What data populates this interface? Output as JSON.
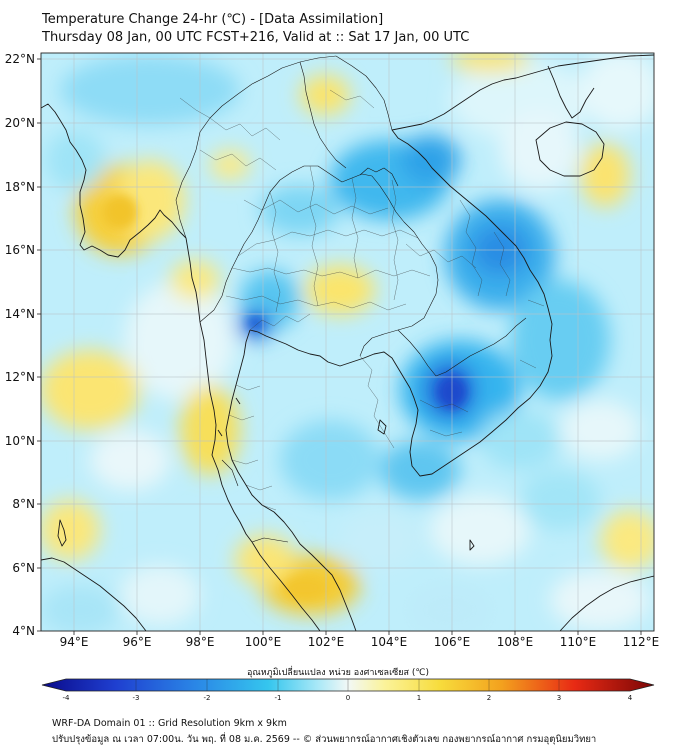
{
  "header": {
    "title": "Temperature Change 24-hr (℃) - [Data Assimilation]",
    "subtitle": "Thursday 08 Jan, 00 UTC FCST+216, Valid at :: Sat 17 Jan, 00 UTC"
  },
  "map": {
    "x_ticks": [
      "94°E",
      "96°E",
      "98°E",
      "100°E",
      "102°E",
      "104°E",
      "106°E",
      "108°E",
      "110°E",
      "112°E"
    ],
    "y_ticks": [
      "22°N",
      "20°N",
      "18°N",
      "16°N",
      "14°N",
      "12°N",
      "10°N",
      "8°N",
      "6°N",
      "4°N"
    ],
    "lon_range": [
      93,
      113
    ],
    "lat_range": [
      4,
      22.3
    ],
    "colors": {
      "cold_strong": "#1f3fd0",
      "cold": "#35b8ec",
      "cold_light": "#9ee2f8",
      "neutral": "#e9f6fa",
      "warm_light": "#fbef8a",
      "warm": "#f2c42c"
    }
  },
  "colorbar": {
    "label": "อุณหภูมิเปลี่ยนแปลง หน่วย องศาเซลเซียส (℃)",
    "ticks": [
      "-4",
      "-3",
      "-2",
      "-1",
      "0",
      "1",
      "2",
      "3",
      "4"
    ],
    "range": [
      -4,
      4
    ]
  },
  "footer": {
    "line1": "WRF-DA Domain 01 :: Grid Resolution 9km x 9km",
    "line2": "ปรับปรุงข้อมูล ณ เวลา 07:00น. วัน พฤ. ที่ 08 ม.ค. 2569 -- © ส่วนพยากรณ์อากาศเชิงตัวเลข กองพยากรณ์อากาศ กรมอุตุนิยมวิทยา"
  }
}
